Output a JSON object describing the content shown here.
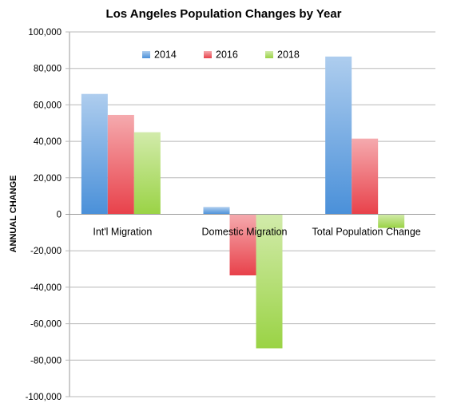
{
  "chart_data": {
    "type": "bar",
    "title": "Los Angeles Population Changes by Year",
    "xlabel": "",
    "ylabel": "ANNUAL CHANGE",
    "ylim": [
      -100000,
      100000
    ],
    "yticks": [
      100000,
      80000,
      60000,
      40000,
      20000,
      0,
      -20000,
      -40000,
      -60000,
      -80000,
      -100000
    ],
    "ytick_labels": [
      "100,000",
      "80,000",
      "60,000",
      "40,000",
      "20,000",
      "0",
      "-20,000",
      "-40,000",
      "-60,000",
      "-80,000",
      "-100,000"
    ],
    "categories": [
      "Int'l Migration",
      "Domestic Migration",
      "Total Population Change"
    ],
    "series": [
      {
        "name": "2014",
        "values": [
          66000,
          4000,
          86500
        ],
        "color": "#4a90d9"
      },
      {
        "name": "2016",
        "values": [
          54500,
          -33500,
          41500
        ],
        "color": "#e8414a"
      },
      {
        "name": "2018",
        "values": [
          45000,
          -73500,
          -7500
        ],
        "color": "#9ad345"
      }
    ],
    "grid": true,
    "legend": "top-center"
  }
}
